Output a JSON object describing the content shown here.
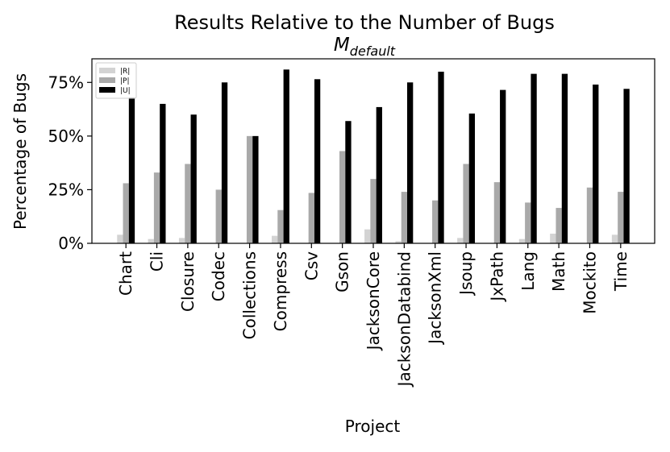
{
  "chart_data": {
    "type": "bar",
    "title": "Results Relative to the Number of Bugs",
    "subtitle": {
      "base": "M",
      "sub": "default"
    },
    "x_label": "Project",
    "y_label": "Percentage of Bugs",
    "categories": [
      "Chart",
      "Cli",
      "Closure",
      "Codec",
      "Collections",
      "Compress",
      "Csv",
      "Gson",
      "JacksonCore",
      "JacksonDatabind",
      "JacksonXml",
      "Jsoup",
      "JxPath",
      "Lang",
      "Math",
      "Mockito",
      "Time"
    ],
    "series": [
      {
        "name": "|R|",
        "color": "#d3d3d3",
        "values": [
          4,
          2,
          2.5,
          0,
          0,
          3.5,
          0,
          0,
          6.5,
          1,
          0,
          2.5,
          0,
          2,
          4.5,
          0,
          4
        ]
      },
      {
        "name": "|P|",
        "color": "#a9a9a9",
        "values": [
          28,
          33,
          37,
          25,
          50,
          15.5,
          23.5,
          43,
          30,
          24,
          20,
          37,
          28.5,
          19,
          16.5,
          26,
          24
        ]
      },
      {
        "name": "|U|",
        "color": "#000000",
        "values": [
          68,
          65,
          60,
          75,
          50,
          81,
          76.5,
          57,
          63.5,
          75,
          80,
          60.5,
          71.5,
          79,
          79,
          74,
          72
        ]
      }
    ],
    "ylim": [
      0,
      86
    ],
    "yticks": [
      {
        "value": 0,
        "label": "0%"
      },
      {
        "value": 25,
        "label": "25%"
      },
      {
        "value": 50,
        "label": "50%"
      },
      {
        "value": 75,
        "label": "75%"
      }
    ],
    "legend": "upper left",
    "grid": false
  }
}
